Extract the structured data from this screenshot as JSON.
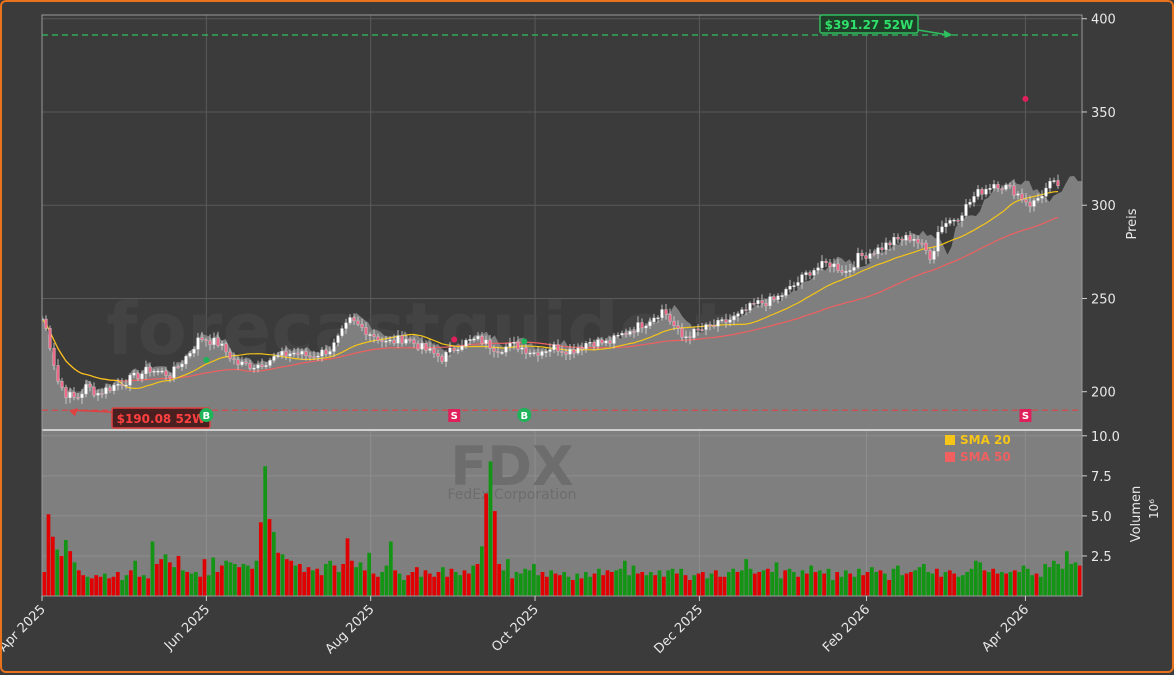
{
  "chart_data": {
    "type": "candlestick",
    "watermark": "forecastguide.trade",
    "ticker": "FDX",
    "company": "FedEx Corporation",
    "price_axis": {
      "label": "Preis",
      "ylim": [
        180,
        402
      ],
      "ticks": [
        200,
        250,
        300,
        350,
        400
      ]
    },
    "volume_axis": {
      "label": "Volumen",
      "exponent": "10⁶",
      "ylim": [
        0,
        10.3
      ],
      "ticks": [
        2.5,
        5.0,
        7.5,
        10.0
      ],
      "tick_labels": [
        "2.5",
        "5.0",
        "7.5",
        "10.0"
      ]
    },
    "x_axis": {
      "tick_labels": [
        "Apr 2025",
        "Jun 2025",
        "Aug 2025",
        "Oct 2025",
        "Dec 2025",
        "Feb 2026",
        "Apr 2026"
      ],
      "tick_dates": [
        "2025-04-01",
        "2025-06-01",
        "2025-08-01",
        "2025-10-01",
        "2025-12-01",
        "2026-02-01",
        "2026-04-01"
      ],
      "range": [
        "2025-04-01",
        "2026-04-22"
      ]
    },
    "high_52w": {
      "value": 391.27,
      "label": "$391.27 52W",
      "date": "2026-03-05"
    },
    "low_52w": {
      "value": 190.08,
      "label": "$190.08 52W",
      "date": "2025-04-11"
    },
    "signals": [
      {
        "type": "B",
        "date": "2025-06-01",
        "price": 217
      },
      {
        "type": "S",
        "date": "2025-09-01",
        "price": 228
      },
      {
        "type": "B",
        "date": "2025-09-27",
        "price": 227
      },
      {
        "type": "S",
        "date": "2026-04-01",
        "price": 357
      }
    ],
    "legend": [
      {
        "name": "SMA 20",
        "color": "#f5c518"
      },
      {
        "name": "SMA 50",
        "color": "#f06060"
      }
    ],
    "price_points": [
      [
        "2025-04-01",
        239
      ],
      [
        "2025-04-03",
        232
      ],
      [
        "2025-04-07",
        206
      ],
      [
        "2025-04-10",
        199
      ],
      [
        "2025-04-14",
        196
      ],
      [
        "2025-04-18",
        203
      ],
      [
        "2025-04-22",
        199
      ],
      [
        "2025-04-28",
        203
      ],
      [
        "2025-05-05",
        207
      ],
      [
        "2025-05-12",
        212
      ],
      [
        "2025-05-20",
        209
      ],
      [
        "2025-05-27",
        221
      ],
      [
        "2025-05-31",
        229
      ],
      [
        "2025-06-07",
        226
      ],
      [
        "2025-06-14",
        215
      ],
      [
        "2025-06-21",
        214
      ],
      [
        "2025-06-28",
        218
      ],
      [
        "2025-07-05",
        221
      ],
      [
        "2025-07-12",
        219
      ],
      [
        "2025-07-20",
        223
      ],
      [
        "2025-07-27",
        238
      ],
      [
        "2025-08-02",
        233
      ],
      [
        "2025-08-10",
        226
      ],
      [
        "2025-08-17",
        229
      ],
      [
        "2025-08-24",
        223
      ],
      [
        "2025-08-31",
        218
      ],
      [
        "2025-09-07",
        226
      ],
      [
        "2025-09-14",
        228
      ],
      [
        "2025-09-21",
        223
      ],
      [
        "2025-09-28",
        225
      ],
      [
        "2025-10-05",
        221
      ],
      [
        "2025-10-12",
        224
      ],
      [
        "2025-10-19",
        222
      ],
      [
        "2025-10-26",
        227
      ],
      [
        "2025-11-02",
        226
      ],
      [
        "2025-11-09",
        232
      ],
      [
        "2025-11-16",
        237
      ],
      [
        "2025-11-23",
        244
      ],
      [
        "2025-11-30",
        229
      ],
      [
        "2025-12-07",
        233
      ],
      [
        "2025-12-14",
        236
      ],
      [
        "2025-12-21",
        240
      ],
      [
        "2025-12-28",
        247
      ],
      [
        "2026-01-04",
        249
      ],
      [
        "2026-01-11",
        256
      ],
      [
        "2026-01-18",
        265
      ],
      [
        "2026-01-25",
        269
      ],
      [
        "2026-02-01",
        264
      ],
      [
        "2026-02-05",
        272
      ],
      [
        "2026-02-12",
        276
      ],
      [
        "2026-02-19",
        281
      ],
      [
        "2026-02-26",
        283
      ],
      [
        "2026-03-05",
        272
      ],
      [
        "2026-03-08",
        289
      ],
      [
        "2026-03-15",
        294
      ],
      [
        "2026-03-22",
        306
      ],
      [
        "2026-03-29",
        312
      ],
      [
        "2026-04-05",
        308
      ],
      [
        "2026-04-12",
        300
      ],
      [
        "2026-04-19",
        311
      ]
    ],
    "volume_bars": [
      [
        1.5,
        "down"
      ],
      [
        5.1,
        "down"
      ],
      [
        3.7,
        "down"
      ],
      [
        2.9,
        "up"
      ],
      [
        2.5,
        "down"
      ],
      [
        3.5,
        "up"
      ],
      [
        2.8,
        "down"
      ],
      [
        2.1,
        "up"
      ],
      [
        1.6,
        "down"
      ],
      [
        1.3,
        "down"
      ],
      [
        1.2,
        "up"
      ],
      [
        1.1,
        "down"
      ],
      [
        1.3,
        "down"
      ],
      [
        1.2,
        "down"
      ],
      [
        1.4,
        "up"
      ],
      [
        1.1,
        "down"
      ],
      [
        1.2,
        "down"
      ],
      [
        1.5,
        "down"
      ],
      [
        1.0,
        "up"
      ],
      [
        1.3,
        "up"
      ],
      [
        1.6,
        "down"
      ],
      [
        2.2,
        "up"
      ],
      [
        1.2,
        "down"
      ],
      [
        1.3,
        "up"
      ],
      [
        1.1,
        "down"
      ],
      [
        3.4,
        "up"
      ],
      [
        2.0,
        "down"
      ],
      [
        2.3,
        "down"
      ],
      [
        2.6,
        "up"
      ],
      [
        2.1,
        "down"
      ],
      [
        1.8,
        "up"
      ],
      [
        2.5,
        "down"
      ],
      [
        1.6,
        "up"
      ],
      [
        1.5,
        "down"
      ],
      [
        1.4,
        "up"
      ],
      [
        1.5,
        "up"
      ],
      [
        1.2,
        "down"
      ],
      [
        2.3,
        "down"
      ],
      [
        1.3,
        "up"
      ],
      [
        2.4,
        "up"
      ],
      [
        1.5,
        "down"
      ],
      [
        1.9,
        "down"
      ],
      [
        2.2,
        "up"
      ],
      [
        2.1,
        "up"
      ],
      [
        2.0,
        "up"
      ],
      [
        1.8,
        "down"
      ],
      [
        2.0,
        "up"
      ],
      [
        1.9,
        "up"
      ],
      [
        1.7,
        "down"
      ],
      [
        2.2,
        "up"
      ],
      [
        4.6,
        "down"
      ],
      [
        8.1,
        "up"
      ],
      [
        4.8,
        "down"
      ],
      [
        4.0,
        "up"
      ],
      [
        2.7,
        "down"
      ],
      [
        2.6,
        "up"
      ],
      [
        2.3,
        "down"
      ],
      [
        2.2,
        "down"
      ],
      [
        1.9,
        "up"
      ],
      [
        2.0,
        "down"
      ],
      [
        1.5,
        "down"
      ],
      [
        1.8,
        "down"
      ],
      [
        1.6,
        "up"
      ],
      [
        1.7,
        "down"
      ],
      [
        1.3,
        "down"
      ],
      [
        2.0,
        "up"
      ],
      [
        2.2,
        "up"
      ],
      [
        1.9,
        "down"
      ],
      [
        1.5,
        "up"
      ],
      [
        2.0,
        "down"
      ],
      [
        3.6,
        "down"
      ],
      [
        2.2,
        "down"
      ],
      [
        1.8,
        "up"
      ],
      [
        2.1,
        "up"
      ],
      [
        1.6,
        "down"
      ],
      [
        2.7,
        "up"
      ],
      [
        1.4,
        "down"
      ],
      [
        1.2,
        "down"
      ],
      [
        1.5,
        "up"
      ],
      [
        1.9,
        "up"
      ],
      [
        3.4,
        "up"
      ],
      [
        1.6,
        "down"
      ],
      [
        1.4,
        "up"
      ],
      [
        1.0,
        "up"
      ],
      [
        1.3,
        "down"
      ],
      [
        1.5,
        "down"
      ],
      [
        1.8,
        "down"
      ],
      [
        1.2,
        "up"
      ],
      [
        1.6,
        "down"
      ],
      [
        1.4,
        "down"
      ],
      [
        1.2,
        "down"
      ],
      [
        1.5,
        "down"
      ],
      [
        1.8,
        "up"
      ],
      [
        1.2,
        "down"
      ],
      [
        1.7,
        "down"
      ],
      [
        1.5,
        "up"
      ],
      [
        1.3,
        "up"
      ],
      [
        1.6,
        "down"
      ],
      [
        1.4,
        "down"
      ],
      [
        1.9,
        "up"
      ],
      [
        2.0,
        "down"
      ],
      [
        3.1,
        "up"
      ],
      [
        6.4,
        "down"
      ],
      [
        8.4,
        "up"
      ],
      [
        5.3,
        "down"
      ],
      [
        2.0,
        "down"
      ],
      [
        1.6,
        "up"
      ],
      [
        2.3,
        "up"
      ],
      [
        1.1,
        "down"
      ],
      [
        1.5,
        "up"
      ],
      [
        1.4,
        "up"
      ],
      [
        1.7,
        "up"
      ],
      [
        1.6,
        "up"
      ],
      [
        2.0,
        "up"
      ],
      [
        1.3,
        "up"
      ],
      [
        1.5,
        "down"
      ],
      [
        1.2,
        "down"
      ],
      [
        1.6,
        "up"
      ],
      [
        1.4,
        "down"
      ],
      [
        1.3,
        "down"
      ],
      [
        1.5,
        "up"
      ],
      [
        1.2,
        "up"
      ],
      [
        1.0,
        "down"
      ],
      [
        1.4,
        "up"
      ],
      [
        1.1,
        "down"
      ],
      [
        1.5,
        "up"
      ],
      [
        1.2,
        "up"
      ],
      [
        1.4,
        "down"
      ],
      [
        1.7,
        "up"
      ],
      [
        1.3,
        "down"
      ],
      [
        1.6,
        "down"
      ],
      [
        1.5,
        "down"
      ],
      [
        1.6,
        "up"
      ],
      [
        1.7,
        "up"
      ],
      [
        2.2,
        "up"
      ],
      [
        1.3,
        "up"
      ],
      [
        1.9,
        "up"
      ],
      [
        1.4,
        "down"
      ],
      [
        1.5,
        "down"
      ],
      [
        1.3,
        "up"
      ],
      [
        1.5,
        "up"
      ],
      [
        1.3,
        "down"
      ],
      [
        1.6,
        "up"
      ],
      [
        1.2,
        "down"
      ],
      [
        1.6,
        "up"
      ],
      [
        1.7,
        "up"
      ],
      [
        1.4,
        "down"
      ],
      [
        1.7,
        "up"
      ],
      [
        1.3,
        "down"
      ],
      [
        1.0,
        "down"
      ],
      [
        1.3,
        "up"
      ],
      [
        1.4,
        "down"
      ],
      [
        1.5,
        "down"
      ],
      [
        1.1,
        "up"
      ],
      [
        1.4,
        "up"
      ],
      [
        1.6,
        "down"
      ],
      [
        1.2,
        "down"
      ],
      [
        1.2,
        "down"
      ],
      [
        1.5,
        "up"
      ],
      [
        1.7,
        "up"
      ],
      [
        1.5,
        "down"
      ],
      [
        1.6,
        "up"
      ],
      [
        2.3,
        "up"
      ],
      [
        1.7,
        "up"
      ],
      [
        1.4,
        "down"
      ],
      [
        1.5,
        "down"
      ],
      [
        1.6,
        "up"
      ],
      [
        1.7,
        "down"
      ],
      [
        1.5,
        "up"
      ],
      [
        2.1,
        "up"
      ],
      [
        1.1,
        "up"
      ],
      [
        1.6,
        "down"
      ],
      [
        1.7,
        "up"
      ],
      [
        1.5,
        "up"
      ],
      [
        1.2,
        "down"
      ],
      [
        1.6,
        "up"
      ],
      [
        1.4,
        "down"
      ],
      [
        1.9,
        "up"
      ],
      [
        1.5,
        "down"
      ],
      [
        1.6,
        "up"
      ],
      [
        1.4,
        "down"
      ],
      [
        1.7,
        "up"
      ],
      [
        1.0,
        "up"
      ],
      [
        1.5,
        "down"
      ],
      [
        1.2,
        "up"
      ],
      [
        1.6,
        "up"
      ],
      [
        1.4,
        "down"
      ],
      [
        1.2,
        "up"
      ],
      [
        1.7,
        "up"
      ],
      [
        1.3,
        "down"
      ],
      [
        1.5,
        "down"
      ],
      [
        1.8,
        "up"
      ],
      [
        1.5,
        "up"
      ],
      [
        1.6,
        "down"
      ],
      [
        1.4,
        "up"
      ],
      [
        1.0,
        "down"
      ],
      [
        1.7,
        "up"
      ],
      [
        1.9,
        "up"
      ],
      [
        1.3,
        "up"
      ],
      [
        1.4,
        "down"
      ],
      [
        1.5,
        "down"
      ],
      [
        1.6,
        "up"
      ],
      [
        1.8,
        "up"
      ],
      [
        2.0,
        "up"
      ],
      [
        1.5,
        "up"
      ],
      [
        1.4,
        "up"
      ],
      [
        1.7,
        "down"
      ],
      [
        1.2,
        "down"
      ],
      [
        1.5,
        "up"
      ],
      [
        1.6,
        "down"
      ],
      [
        1.4,
        "down"
      ],
      [
        1.2,
        "up"
      ],
      [
        1.3,
        "up"
      ],
      [
        1.5,
        "up"
      ],
      [
        1.7,
        "up"
      ],
      [
        2.2,
        "up"
      ],
      [
        2.1,
        "up"
      ],
      [
        1.6,
        "down"
      ],
      [
        1.5,
        "up"
      ],
      [
        1.7,
        "down"
      ],
      [
        1.4,
        "down"
      ],
      [
        1.5,
        "up"
      ],
      [
        1.4,
        "down"
      ],
      [
        1.5,
        "up"
      ],
      [
        1.6,
        "down"
      ],
      [
        1.5,
        "up"
      ],
      [
        1.9,
        "up"
      ],
      [
        1.7,
        "up"
      ],
      [
        1.3,
        "up"
      ],
      [
        1.4,
        "down"
      ],
      [
        1.2,
        "up"
      ],
      [
        2.0,
        "up"
      ],
      [
        1.8,
        "up"
      ],
      [
        2.2,
        "up"
      ],
      [
        2.0,
        "up"
      ],
      [
        1.7,
        "up"
      ],
      [
        2.8,
        "up"
      ],
      [
        2.0,
        "up"
      ],
      [
        2.1,
        "up"
      ],
      [
        1.9,
        "down"
      ]
    ]
  }
}
